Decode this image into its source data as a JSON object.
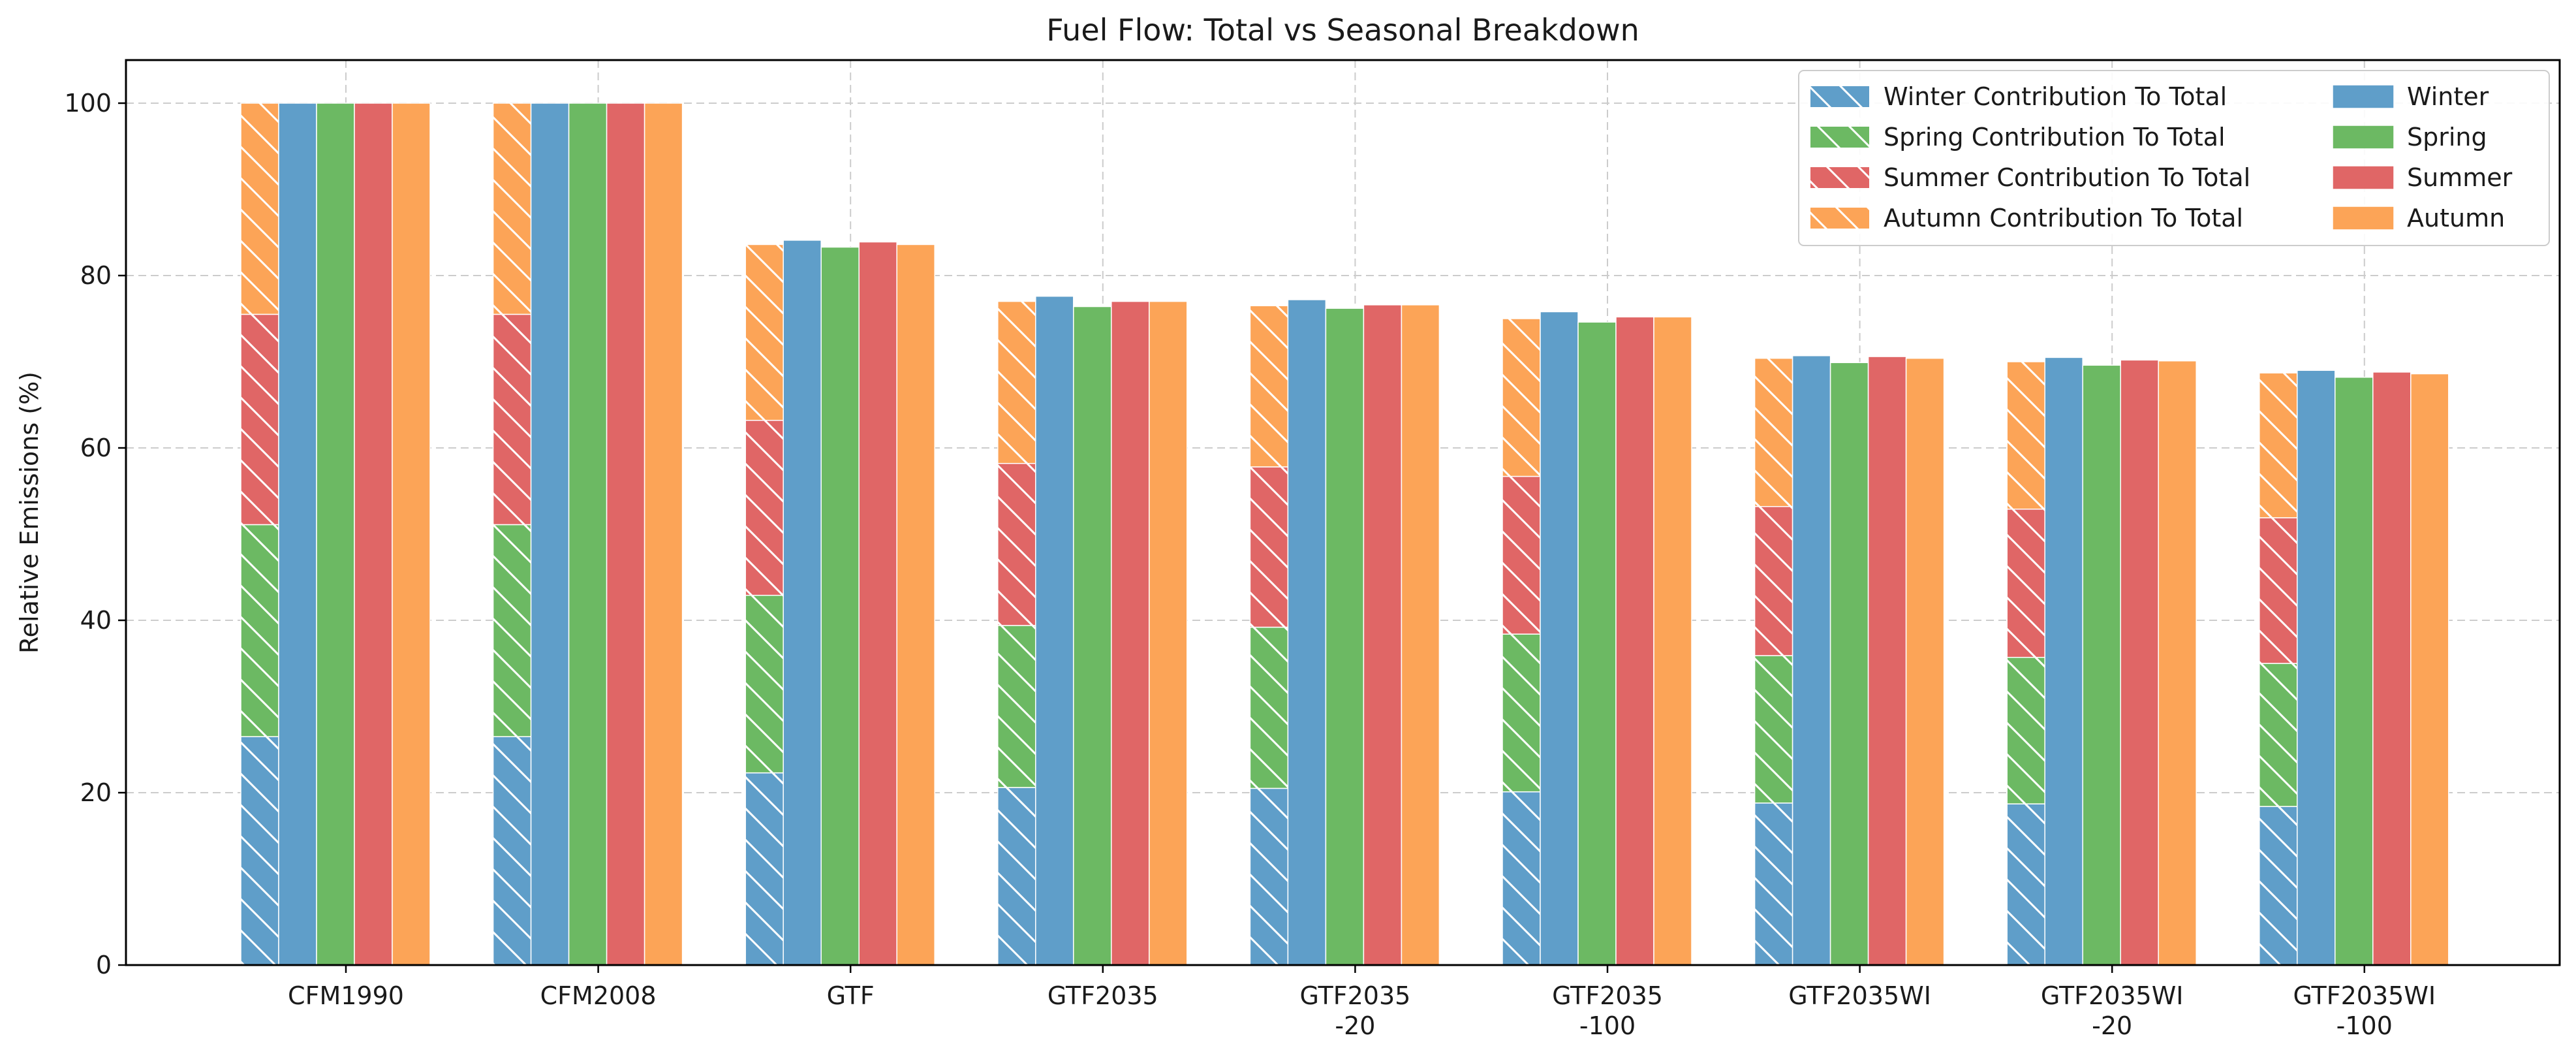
{
  "chart_data": {
    "type": "bar",
    "title": "Fuel Flow: Total vs Seasonal Breakdown",
    "xlabel": "",
    "ylabel": "Relative Emissions (%)",
    "ylim": [
      0,
      105
    ],
    "yticks": [
      0,
      20,
      40,
      60,
      80,
      100
    ],
    "grid": true,
    "legend_position": "top-right",
    "categories": [
      [
        "CFM1990"
      ],
      [
        "CFM2008"
      ],
      [
        "GTF"
      ],
      [
        "GTF2035"
      ],
      [
        "GTF2035",
        "-20"
      ],
      [
        "GTF2035",
        "-100"
      ],
      [
        "GTF2035WI"
      ],
      [
        "GTF2035WI",
        "-20"
      ],
      [
        "GTF2035WI",
        "-100"
      ]
    ],
    "stacked_series": [
      {
        "name": "Winter Contribution To Total",
        "color": "#5f9ec9",
        "values": [
          26.5,
          26.5,
          22.3,
          20.6,
          20.5,
          20.1,
          18.8,
          18.7,
          18.4
        ]
      },
      {
        "name": "Spring Contribution To Total",
        "color": "#6cb963",
        "values": [
          24.6,
          24.6,
          20.6,
          18.8,
          18.7,
          18.3,
          17.1,
          17.0,
          16.6
        ]
      },
      {
        "name": "Summer Contribution To Total",
        "color": "#e06666",
        "values": [
          24.4,
          24.4,
          20.3,
          18.8,
          18.6,
          18.3,
          17.3,
          17.2,
          16.9
        ]
      },
      {
        "name": "Autumn Contribution To Total",
        "color": "#fca457",
        "values": [
          24.5,
          24.5,
          20.4,
          18.8,
          18.7,
          18.3,
          17.2,
          17.1,
          16.8
        ]
      }
    ],
    "series": [
      {
        "name": "Winter",
        "color": "#5f9ec9",
        "values": [
          100,
          100,
          84.1,
          77.6,
          77.2,
          75.8,
          70.7,
          70.5,
          69.0
        ]
      },
      {
        "name": "Spring",
        "color": "#6cb963",
        "values": [
          100,
          100,
          83.3,
          76.4,
          76.2,
          74.6,
          69.9,
          69.6,
          68.2
        ]
      },
      {
        "name": "Summer",
        "color": "#e06666",
        "values": [
          100,
          100,
          83.9,
          77.0,
          76.6,
          75.2,
          70.6,
          70.2,
          68.8
        ]
      },
      {
        "name": "Autumn",
        "color": "#fca457",
        "values": [
          100,
          100,
          83.6,
          77.0,
          76.6,
          75.2,
          70.4,
          70.1,
          68.6
        ]
      }
    ]
  }
}
